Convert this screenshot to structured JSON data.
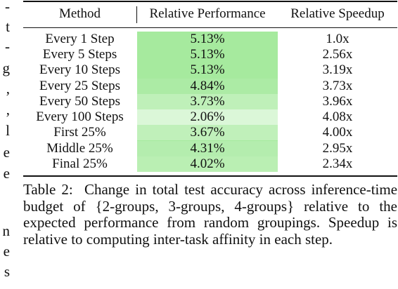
{
  "left_fragments": [
    "-",
    "t",
    "-",
    "g",
    ",",
    ",",
    "l",
    "e",
    "e",
    "n",
    "e",
    "s"
  ],
  "table": {
    "headers": {
      "method": "Method",
      "performance": "Relative Performance",
      "speedup": "Relative Speedup"
    },
    "rows": [
      {
        "method": "Every 1 Step",
        "performance": "5.13%",
        "speedup": "1.0x",
        "shade": 1.0
      },
      {
        "method": "Every 5 Steps",
        "performance": "5.13%",
        "speedup": "2.56x",
        "shade": 1.0
      },
      {
        "method": "Every 10 Steps",
        "performance": "5.13%",
        "speedup": "3.19x",
        "shade": 1.0
      },
      {
        "method": "Every 25 Steps",
        "performance": "4.84%",
        "speedup": "3.73x",
        "shade": 0.93
      },
      {
        "method": "Every 50 Steps",
        "performance": "3.73%",
        "speedup": "3.96x",
        "shade": 0.72
      },
      {
        "method": "Every 100 Steps",
        "performance": "2.06%",
        "speedup": "4.08x",
        "shade": 0.4
      },
      {
        "method": "First 25%",
        "performance": "3.67%",
        "speedup": "4.00x",
        "shade": 0.71
      },
      {
        "method": "Middle 25%",
        "performance": "4.31%",
        "speedup": "2.95x",
        "shade": 0.84
      },
      {
        "method": "Final 25%",
        "performance": "4.02%",
        "speedup": "2.34x",
        "shade": 0.78
      }
    ]
  },
  "caption": {
    "label": "Table 2:",
    "text": "Change in total test accuracy across inference-time budget of {2-groups, 3-groups, 4-groups} relative to the expected performance from random groupings. Speedup is relative to computing inter-task affinity in each step."
  },
  "colors": {
    "highlight": "#a6ea9e",
    "text": "#111111"
  }
}
